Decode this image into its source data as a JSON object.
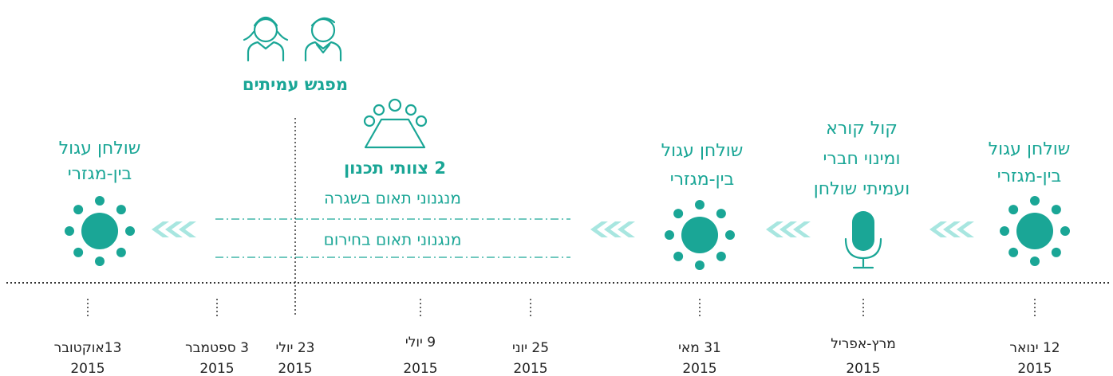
{
  "peer_meeting": "מפגש עמיתים",
  "planning_teams": "2 צוותי תכנון",
  "mechanisms": [
    "מנגנוני תאום בשגרה",
    "מנגנוני תאום בחירום"
  ],
  "stages": [
    {
      "lines": [
        "שולחן עגול",
        "בין-מגזרי"
      ]
    },
    {
      "lines": [
        "קול קורא",
        "ומינוי חברי",
        "ועמיתי שולחן"
      ]
    },
    {
      "lines": [
        "שולחן עגול",
        "בין-מגזרי"
      ]
    },
    {
      "lines": [
        "שולחן עגול",
        "בין-מגזרי"
      ]
    }
  ],
  "dates": [
    {
      "label": "12 ינואר",
      "year": "2015"
    },
    {
      "label": "מרץ-אפריל",
      "year": "2015"
    },
    {
      "label": "31 מאי",
      "year": "2015"
    },
    {
      "label": "25 יוני",
      "year": "2015"
    },
    {
      "label": "9 יולי",
      "year": "2015"
    },
    {
      "label": "23 יולי",
      "year": "2015"
    },
    {
      "label": "3 ספטמבר",
      "year": "2015"
    },
    {
      "label": "13אוקטובר",
      "year": "2015"
    }
  ]
}
